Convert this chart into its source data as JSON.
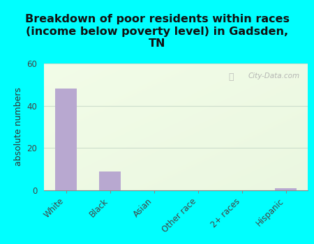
{
  "categories": [
    "White",
    "Black",
    "Asian",
    "Other race",
    "2+ races",
    "Hispanic"
  ],
  "values": [
    48,
    9,
    0,
    0,
    0,
    1
  ],
  "bar_color": "#b8a8d0",
  "title": "Breakdown of poor residents within races\n(income below poverty level) in Gadsden,\nTN",
  "ylabel": "absolute numbers",
  "ylim": [
    0,
    60
  ],
  "yticks": [
    0,
    20,
    40,
    60
  ],
  "background_outer": "#00ffff",
  "title_fontsize": 11.5,
  "axis_label_fontsize": 9,
  "tick_fontsize": 8.5,
  "watermark": "City-Data.com",
  "grid_color": "#ccddcc"
}
